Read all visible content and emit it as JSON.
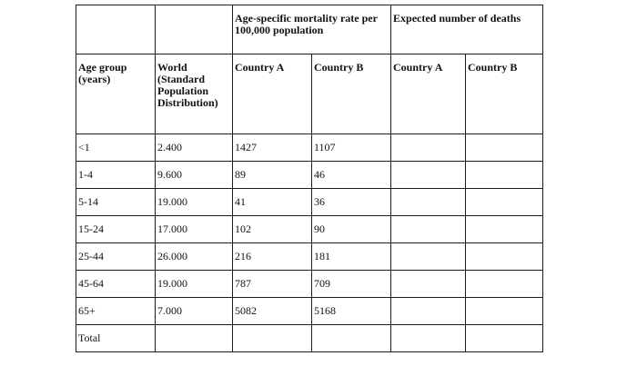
{
  "header": {
    "rate_group": "Age-specific mortality rate per 100,000 population",
    "deaths_group": "Expected number of deaths",
    "age_group": "Age group (years)",
    "world": "World (Standard Population Distribution)",
    "rate_country_a": "Country A",
    "rate_country_b": "Country B",
    "deaths_country_a": "Country A",
    "deaths_country_b": "Country B"
  },
  "rows": [
    {
      "age": "<1",
      "world": "2.400",
      "country_a": "1427",
      "country_b": "1107"
    },
    {
      "age": "1-4",
      "world": "9.600",
      "country_a": "89",
      "country_b": "46"
    },
    {
      "age": "5-14",
      "world": "19.000",
      "country_a": "41",
      "country_b": "36"
    },
    {
      "age": "15-24",
      "world": "17.000",
      "country_a": "102",
      "country_b": "90"
    },
    {
      "age": "25-44",
      "world": "26.000",
      "country_a": "216",
      "country_b": "181"
    },
    {
      "age": "45-64",
      "world": "19.000",
      "country_a": "787",
      "country_b": "709"
    },
    {
      "age": "65+",
      "world": "7.000",
      "country_a": "5082",
      "country_b": "5168"
    }
  ],
  "total_label": "Total"
}
